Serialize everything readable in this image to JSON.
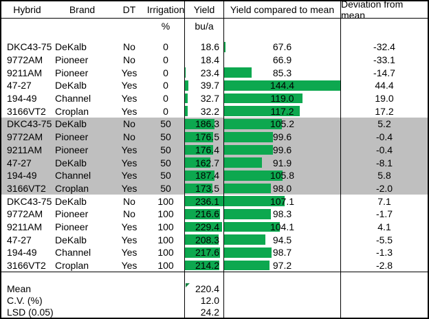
{
  "header": {
    "columns": [
      "Hybrid",
      "Brand",
      "DT",
      "Irrigation",
      "Yield",
      "Yield compared to mean",
      "Deviation from mean"
    ],
    "units": {
      "irrigation": "%",
      "yield": "bu/a"
    }
  },
  "colors": {
    "bar_green": "#0DA84F",
    "row_shade_gray": "#BFBFBF",
    "border_black": "#000000"
  },
  "table": {
    "bar_scales": {
      "yield": {
        "min": 18.4,
        "max": 236.1
      },
      "compared": {
        "min": 66.9,
        "max": 144.4
      }
    },
    "rows": [
      {
        "hybrid": "DKC43-75",
        "brand": "DeKalb",
        "dt": "No",
        "irrigation": "0",
        "yield": "18.6",
        "compared": "67.6",
        "deviation": "-32.4",
        "shaded": false
      },
      {
        "hybrid": "9772AM",
        "brand": "Pioneer",
        "dt": "No",
        "irrigation": "0",
        "yield": "18.4",
        "compared": "66.9",
        "deviation": "-33.1",
        "shaded": false
      },
      {
        "hybrid": "9211AM",
        "brand": "Pioneer",
        "dt": "Yes",
        "irrigation": "0",
        "yield": "23.4",
        "compared": "85.3",
        "deviation": "-14.7",
        "shaded": false
      },
      {
        "hybrid": "47-27",
        "brand": "DeKalb",
        "dt": "Yes",
        "irrigation": "0",
        "yield": "39.7",
        "compared": "144.4",
        "deviation": "44.4",
        "shaded": false
      },
      {
        "hybrid": "194-49",
        "brand": "Channel",
        "dt": "Yes",
        "irrigation": "0",
        "yield": "32.7",
        "compared": "119.0",
        "deviation": "19.0",
        "shaded": false
      },
      {
        "hybrid": "3166VT2",
        "brand": "Croplan",
        "dt": "Yes",
        "irrigation": "0",
        "yield": "32.2",
        "compared": "117.2",
        "deviation": "17.2",
        "shaded": false
      },
      {
        "hybrid": "DKC43-75",
        "brand": "DeKalb",
        "dt": "No",
        "irrigation": "50",
        "yield": "186.3",
        "compared": "105.2",
        "deviation": "5.2",
        "shaded": true
      },
      {
        "hybrid": "9772AM",
        "brand": "Pioneer",
        "dt": "No",
        "irrigation": "50",
        "yield": "176.5",
        "compared": "99.6",
        "deviation": "-0.4",
        "shaded": true
      },
      {
        "hybrid": "9211AM",
        "brand": "Pioneer",
        "dt": "Yes",
        "irrigation": "50",
        "yield": "176.4",
        "compared": "99.6",
        "deviation": "-0.4",
        "shaded": true
      },
      {
        "hybrid": "47-27",
        "brand": "DeKalb",
        "dt": "Yes",
        "irrigation": "50",
        "yield": "162.7",
        "compared": "91.9",
        "deviation": "-8.1",
        "shaded": true
      },
      {
        "hybrid": "194-49",
        "brand": "Channel",
        "dt": "Yes",
        "irrigation": "50",
        "yield": "187.4",
        "compared": "105.8",
        "deviation": "5.8",
        "shaded": true
      },
      {
        "hybrid": "3166VT2",
        "brand": "Croplan",
        "dt": "Yes",
        "irrigation": "50",
        "yield": "173.5",
        "compared": "98.0",
        "deviation": "-2.0",
        "shaded": true
      },
      {
        "hybrid": "DKC43-75",
        "brand": "DeKalb",
        "dt": "No",
        "irrigation": "100",
        "yield": "236.1",
        "compared": "107.1",
        "deviation": "7.1",
        "shaded": false
      },
      {
        "hybrid": "9772AM",
        "brand": "Pioneer",
        "dt": "No",
        "irrigation": "100",
        "yield": "216.6",
        "compared": "98.3",
        "deviation": "-1.7",
        "shaded": false
      },
      {
        "hybrid": "9211AM",
        "brand": "Pioneer",
        "dt": "Yes",
        "irrigation": "100",
        "yield": "229.4",
        "compared": "104.1",
        "deviation": "4.1",
        "shaded": false
      },
      {
        "hybrid": "47-27",
        "brand": "DeKalb",
        "dt": "Yes",
        "irrigation": "100",
        "yield": "208.3",
        "compared": "94.5",
        "deviation": "-5.5",
        "shaded": false
      },
      {
        "hybrid": "194-49",
        "brand": "Channel",
        "dt": "Yes",
        "irrigation": "100",
        "yield": "217.6",
        "compared": "98.7",
        "deviation": "-1.3",
        "shaded": false
      },
      {
        "hybrid": "3166VT2",
        "brand": "Croplan",
        "dt": "Yes",
        "irrigation": "100",
        "yield": "214.2",
        "compared": "97.2",
        "deviation": "-2.8",
        "shaded": false
      }
    ]
  },
  "summary": {
    "rows": [
      {
        "label": "Mean",
        "value": "220.4",
        "flagged": true
      },
      {
        "label": "C.V. (%)",
        "value": "12.0",
        "flagged": false
      },
      {
        "label": "LSD (0.05)",
        "value": "24.2",
        "flagged": false
      }
    ]
  }
}
